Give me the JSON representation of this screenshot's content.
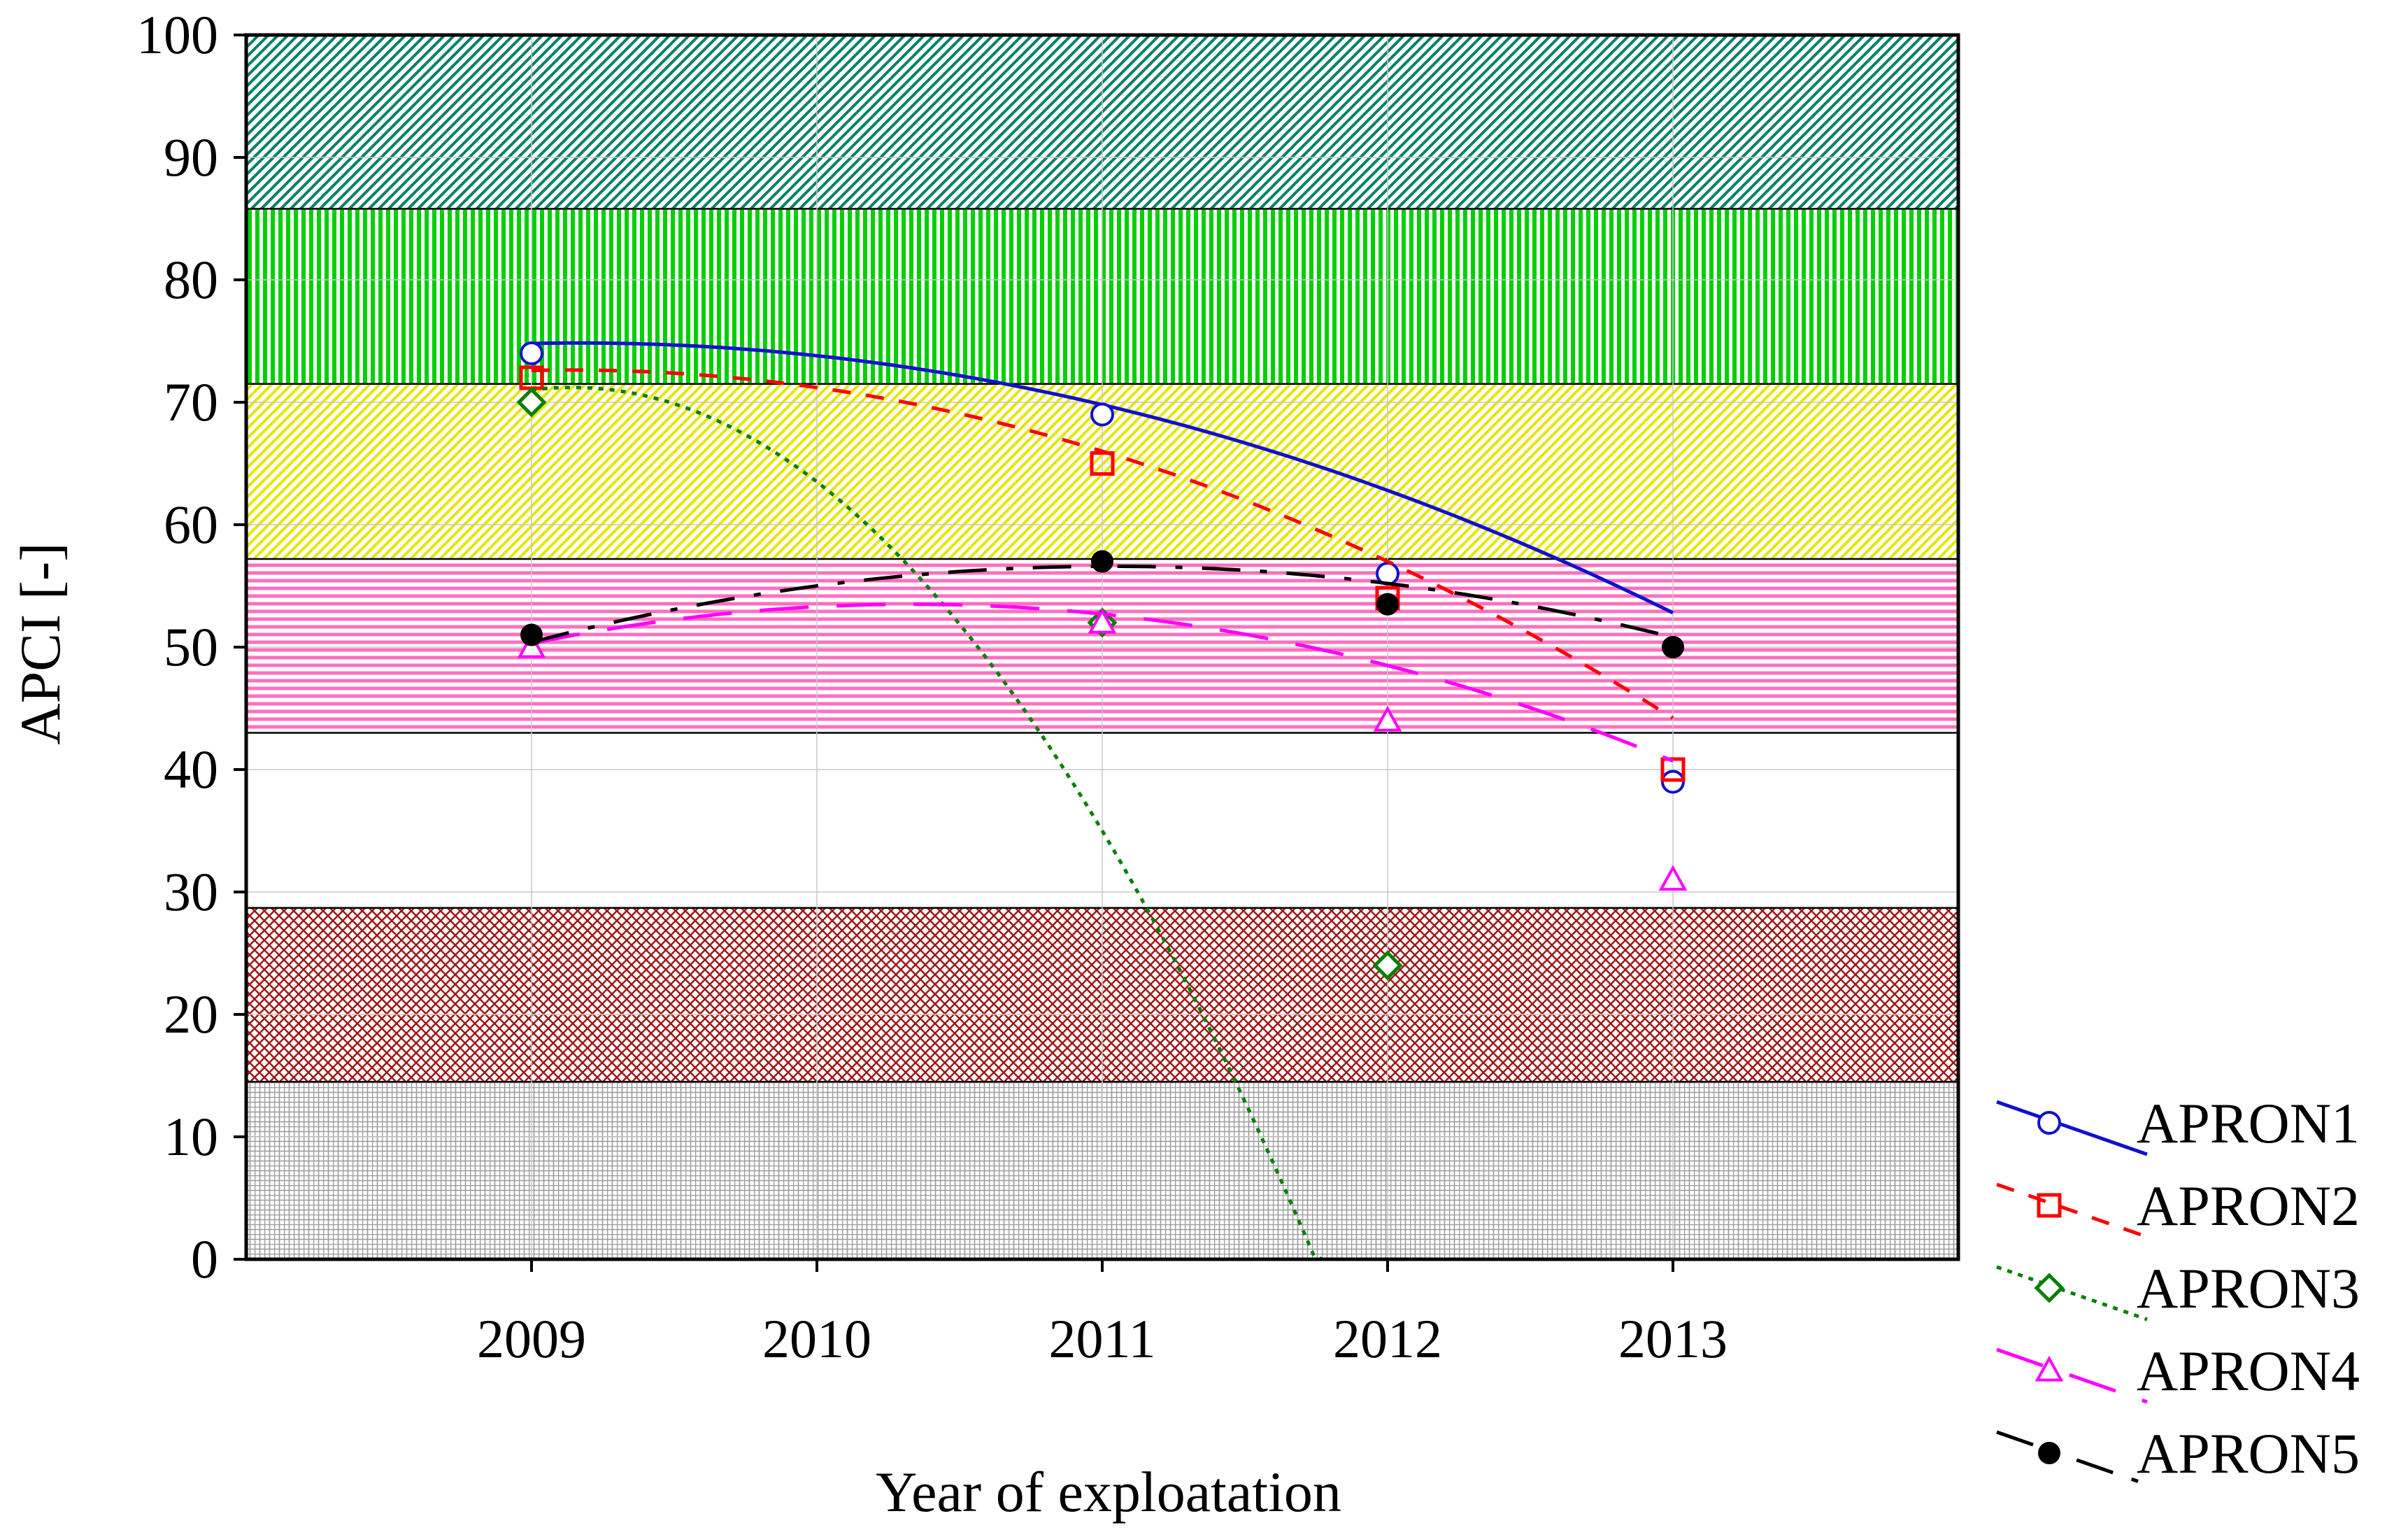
{
  "chart_data": {
    "type": "line",
    "title": "",
    "xlabel": "Year of exploatation",
    "ylabel": "APCI [-]",
    "x": [
      2009,
      2010,
      2011,
      2012,
      2013
    ],
    "xlim": [
      2008,
      2014
    ],
    "ylim": [
      0,
      100
    ],
    "x_tick_labels": [
      "2009",
      "2010",
      "2011",
      "2012",
      "2013"
    ],
    "y_tick_labels": [
      "0",
      "10",
      "20",
      "30",
      "40",
      "50",
      "60",
      "70",
      "80",
      "90",
      "100"
    ],
    "grid": true,
    "legend_position": "bottom-right",
    "bands": [
      {
        "name": "band-grey",
        "from": 0,
        "to": 14.5,
        "color": "#9a9a9a",
        "pattern": "grid"
      },
      {
        "name": "band-red",
        "from": 14.5,
        "to": 28.7,
        "color": "#a01818",
        "pattern": "crosshatch"
      },
      {
        "name": "band-white",
        "from": 28.7,
        "to": 43,
        "color": "#ffffff",
        "pattern": "none"
      },
      {
        "name": "band-pink",
        "from": 43,
        "to": 57.2,
        "color": "#ff6fbf",
        "pattern": "horizontal"
      },
      {
        "name": "band-yellow",
        "from": 57.2,
        "to": 71.5,
        "color": "#e6e600",
        "pattern": "diagonal"
      },
      {
        "name": "band-green",
        "from": 71.5,
        "to": 85.8,
        "color": "#00d000",
        "pattern": "vertical"
      },
      {
        "name": "band-darkgreen",
        "from": 85.8,
        "to": 100,
        "color": "#00806a",
        "pattern": "diagonal"
      }
    ],
    "series": [
      {
        "name": "APRON1",
        "values": [
          74,
          69,
          56,
          39
        ],
        "x": [
          2009,
          2011,
          2012,
          2013
        ],
        "color": "#1010d0",
        "marker": "circle",
        "dash": "solid",
        "fit": [
          -1.5,
          0.5,
          74.8
        ]
      },
      {
        "name": "APRON2",
        "values": [
          72,
          65,
          54,
          40
        ],
        "x": [
          2009,
          2011,
          2012,
          2013
        ],
        "color": "#ff0000",
        "marker": "square",
        "dash": "dashed",
        "fit": [
          -1.9,
          0.5,
          72.6
        ]
      },
      {
        "name": "APRON3",
        "values": [
          70,
          52,
          24
        ],
        "x": [
          2009,
          2011,
          2012
        ],
        "color": "#008000",
        "marker": "diamond",
        "dash": "dotted",
        "fit": [
          -10.5,
          3.0,
          71.0
        ]
      },
      {
        "name": "APRON4",
        "values": [
          50,
          52,
          44,
          31
        ],
        "x": [
          2009,
          2011,
          2012,
          2013
        ],
        "color": "#ff00ff",
        "marker": "triangle",
        "dash": "longdash",
        "fit": [
          -1.8,
          4.8,
          50.3
        ]
      },
      {
        "name": "APRON5",
        "values": [
          51,
          57,
          53.5,
          50
        ],
        "x": [
          2009,
          2011,
          2012,
          2013
        ],
        "color": "#000000",
        "marker": "filled-circle",
        "dash": "dashdot",
        "fit": [
          -1.5,
          6.1,
          50.4
        ]
      }
    ]
  }
}
